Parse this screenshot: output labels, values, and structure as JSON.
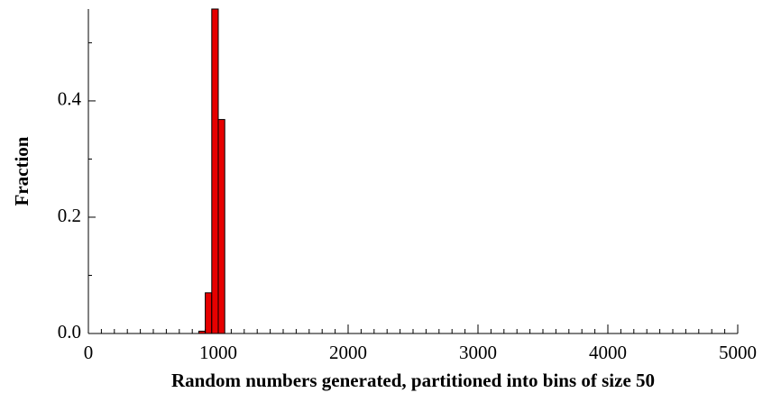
{
  "chart_data": {
    "type": "histogram",
    "x_label": "Random numbers generated, partitioned into bins of size 50",
    "y_label": "Fraction",
    "bins": [
      850,
      900,
      950,
      1000,
      1050
    ],
    "values": [
      0.004,
      0.07,
      0.558,
      0.368
    ],
    "color": "#e60000",
    "xlim": [
      0,
      5000
    ],
    "ylim": [
      0,
      0.558
    ],
    "xticks": [
      0,
      1000,
      2000,
      3000,
      4000,
      5000
    ],
    "yticks": [
      {
        "value": 0,
        "label": "0.0"
      },
      0.2,
      0.4
    ],
    "xminorticks": [
      100,
      200,
      300,
      400,
      500,
      600,
      700,
      800,
      900,
      1100,
      1200,
      1300,
      1400,
      1500,
      1600,
      1700,
      1800,
      1900,
      2100,
      2200,
      2300,
      2400,
      2500,
      2600,
      2700,
      2800,
      2900,
      3100,
      3200,
      3300,
      3400,
      3500,
      3600,
      3700,
      3800,
      3900,
      4100,
      4200,
      4300,
      4400,
      4500,
      4600,
      4700,
      4800,
      4900
    ],
    "yminorticks": [
      0.1,
      0.3,
      0.5
    ]
  }
}
